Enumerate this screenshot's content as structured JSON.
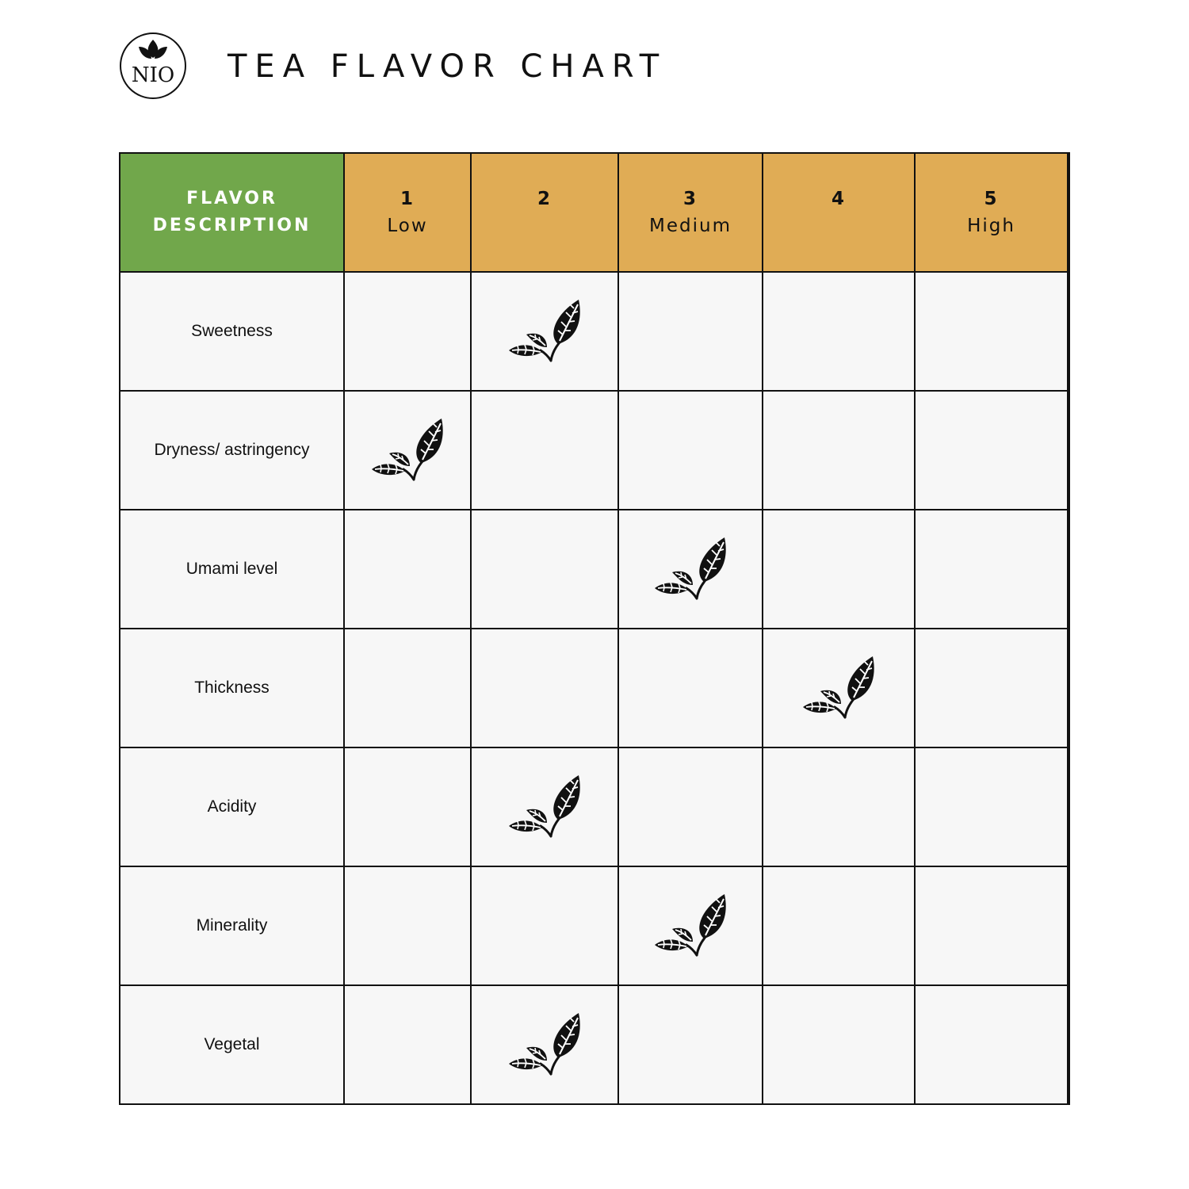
{
  "brand": {
    "logo_text": "NIO"
  },
  "title": "TEA FLAVOR CHART",
  "chart_data": {
    "type": "table",
    "header": "FLAVOR DESCRIPTION",
    "scale": [
      {
        "level": "1",
        "label": "Low"
      },
      {
        "level": "2",
        "label": ""
      },
      {
        "level": "3",
        "label": "Medium"
      },
      {
        "level": "4",
        "label": ""
      },
      {
        "level": "5",
        "label": "High"
      }
    ],
    "rows": [
      {
        "label": "Sweetness",
        "value": 2
      },
      {
        "label": "Dryness/ astringency",
        "value": 1
      },
      {
        "label": "Umami level",
        "value": 3
      },
      {
        "label": "Thickness",
        "value": 4
      },
      {
        "label": "Acidity",
        "value": 2
      },
      {
        "label": "Minerality",
        "value": 3
      },
      {
        "label": "Vegetal",
        "value": 2
      }
    ],
    "marker_icon": "tea-leaf-icon"
  },
  "colors": {
    "header_flavor": "#71a74b",
    "header_levels": "#e0ac55",
    "cell_background": "#f7f7f7",
    "grid_lines": "#111111"
  }
}
